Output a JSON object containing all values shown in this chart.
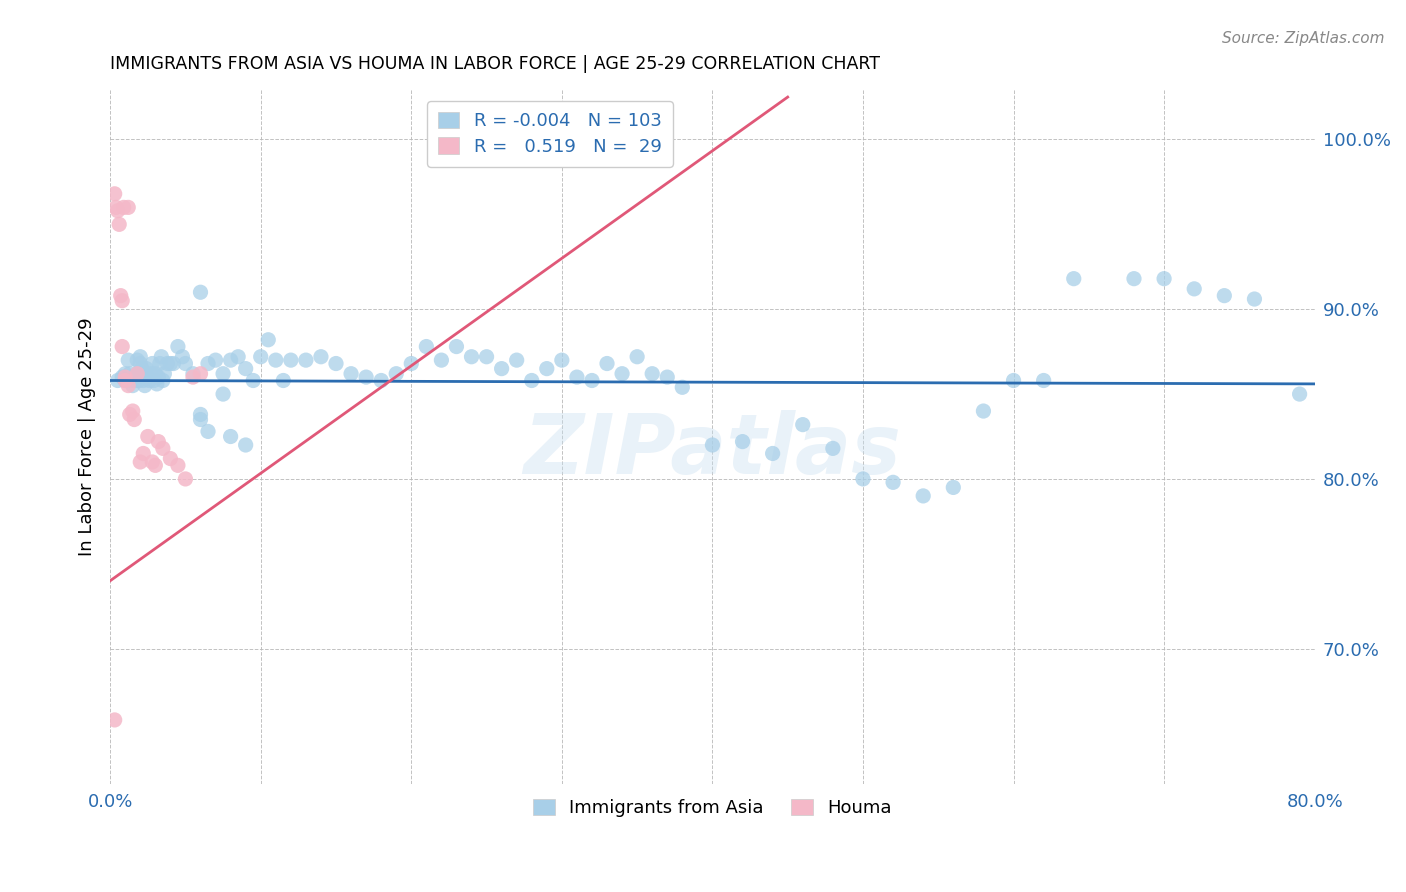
{
  "title": "IMMIGRANTS FROM ASIA VS HOUMA IN LABOR FORCE | AGE 25-29 CORRELATION CHART",
  "source": "Source: ZipAtlas.com",
  "ylabel": "In Labor Force | Age 25-29",
  "xlim": [
    0.0,
    0.8
  ],
  "ylim": [
    0.62,
    1.03
  ],
  "xticks": [
    0.0,
    0.1,
    0.2,
    0.3,
    0.4,
    0.5,
    0.6,
    0.7,
    0.8
  ],
  "xticklabels": [
    "0.0%",
    "",
    "",
    "",
    "",
    "",
    "",
    "",
    "80.0%"
  ],
  "ytick_positions": [
    0.7,
    0.8,
    0.9,
    1.0
  ],
  "ytick_labels": [
    "70.0%",
    "80.0%",
    "90.0%",
    "100.0%"
  ],
  "legend_labels": [
    "Immigrants from Asia",
    "Houma"
  ],
  "legend_R_blue": "-0.004",
  "legend_N_blue": "103",
  "legend_R_pink": "0.519",
  "legend_N_pink": "29",
  "blue_color": "#a8cfe8",
  "pink_color": "#f4b8c8",
  "blue_line_color": "#2b6cb0",
  "pink_line_color": "#e05878",
  "watermark": "ZIPatlas",
  "blue_scatter_x": [
    0.005,
    0.008,
    0.01,
    0.01,
    0.012,
    0.013,
    0.014,
    0.015,
    0.016,
    0.017,
    0.018,
    0.018,
    0.019,
    0.02,
    0.02,
    0.021,
    0.022,
    0.022,
    0.023,
    0.024,
    0.025,
    0.026,
    0.027,
    0.028,
    0.029,
    0.03,
    0.031,
    0.032,
    0.033,
    0.034,
    0.035,
    0.036,
    0.038,
    0.04,
    0.042,
    0.045,
    0.048,
    0.05,
    0.055,
    0.06,
    0.065,
    0.07,
    0.075,
    0.08,
    0.085,
    0.09,
    0.095,
    0.1,
    0.105,
    0.11,
    0.115,
    0.12,
    0.13,
    0.14,
    0.15,
    0.16,
    0.17,
    0.18,
    0.19,
    0.2,
    0.21,
    0.22,
    0.23,
    0.24,
    0.25,
    0.26,
    0.27,
    0.28,
    0.29,
    0.3,
    0.31,
    0.32,
    0.33,
    0.34,
    0.35,
    0.36,
    0.37,
    0.38,
    0.4,
    0.42,
    0.44,
    0.46,
    0.48,
    0.5,
    0.52,
    0.54,
    0.56,
    0.58,
    0.6,
    0.62,
    0.64,
    0.68,
    0.7,
    0.72,
    0.74,
    0.76,
    0.79,
    0.06,
    0.075,
    0.06,
    0.065,
    0.08,
    0.09
  ],
  "blue_scatter_y": [
    0.858,
    0.86,
    0.862,
    0.858,
    0.87,
    0.862,
    0.858,
    0.855,
    0.86,
    0.858,
    0.862,
    0.87,
    0.858,
    0.872,
    0.868,
    0.865,
    0.858,
    0.862,
    0.855,
    0.865,
    0.86,
    0.858,
    0.862,
    0.868,
    0.858,
    0.862,
    0.856,
    0.86,
    0.868,
    0.872,
    0.858,
    0.862,
    0.868,
    0.868,
    0.868,
    0.878,
    0.872,
    0.868,
    0.862,
    0.91,
    0.868,
    0.87,
    0.862,
    0.87,
    0.872,
    0.865,
    0.858,
    0.872,
    0.882,
    0.87,
    0.858,
    0.87,
    0.87,
    0.872,
    0.868,
    0.862,
    0.86,
    0.858,
    0.862,
    0.868,
    0.878,
    0.87,
    0.878,
    0.872,
    0.872,
    0.865,
    0.87,
    0.858,
    0.865,
    0.87,
    0.86,
    0.858,
    0.868,
    0.862,
    0.872,
    0.862,
    0.86,
    0.854,
    0.82,
    0.822,
    0.815,
    0.832,
    0.818,
    0.8,
    0.798,
    0.79,
    0.795,
    0.84,
    0.858,
    0.858,
    0.918,
    0.918,
    0.918,
    0.912,
    0.908,
    0.906,
    0.85,
    0.838,
    0.85,
    0.835,
    0.828,
    0.825,
    0.82
  ],
  "pink_scatter_x": [
    0.003,
    0.004,
    0.005,
    0.006,
    0.007,
    0.008,
    0.008,
    0.009,
    0.01,
    0.01,
    0.012,
    0.012,
    0.013,
    0.015,
    0.016,
    0.018,
    0.02,
    0.022,
    0.025,
    0.028,
    0.03,
    0.032,
    0.035,
    0.04,
    0.045,
    0.05,
    0.055,
    0.06,
    0.003
  ],
  "pink_scatter_y": [
    0.968,
    0.96,
    0.958,
    0.95,
    0.908,
    0.905,
    0.878,
    0.96,
    0.86,
    0.858,
    0.96,
    0.855,
    0.838,
    0.84,
    0.835,
    0.862,
    0.81,
    0.815,
    0.825,
    0.81,
    0.808,
    0.822,
    0.818,
    0.812,
    0.808,
    0.8,
    0.86,
    0.862,
    0.658
  ],
  "blue_trend_x": [
    0.0,
    0.8
  ],
  "blue_trend_y": [
    0.858,
    0.856
  ],
  "pink_trend_x": [
    0.0,
    0.45
  ],
  "pink_trend_y": [
    0.74,
    1.025
  ]
}
